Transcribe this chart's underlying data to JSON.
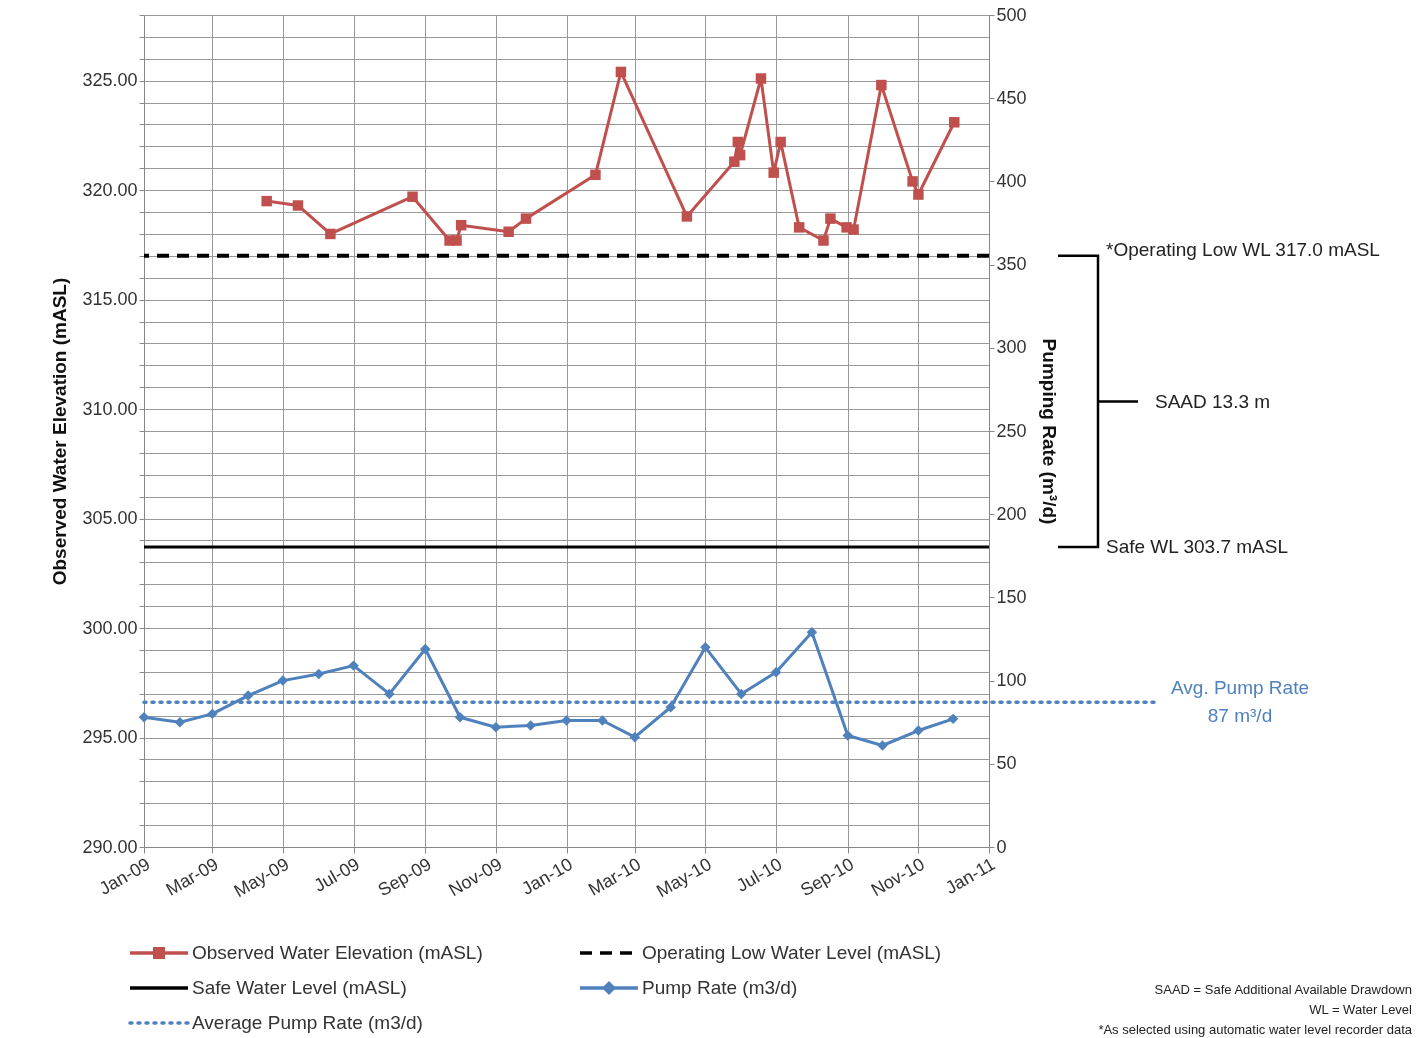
{
  "chart_data": {
    "type": "line",
    "ylabel": "Observed Water Elevation (mASL)",
    "y2label": "Pumping Rate (m³/d)",
    "x": [
      "2009-04-17",
      "2009-05-14",
      "2009-06-11",
      "2009-08-21",
      "2009-09-22",
      "2009-09-28",
      "2009-10-02",
      "2009-11-12",
      "2009-11-27",
      "2010-01-26",
      "2010-02-17",
      "2010-04-15",
      "2010-05-26",
      "2010-05-29",
      "2010-05-31",
      "2010-06-18",
      "2010-06-29",
      "2010-07-05",
      "2010-07-21",
      "2010-08-11",
      "2010-08-17",
      "2010-08-31",
      "2010-09-06",
      "2010-09-30",
      "2010-10-27",
      "2010-11-01",
      "2010-12-02"
    ],
    "series": [
      {
        "name": "Observed Water Elevation (mASL)",
        "color": "#c0504d",
        "marker": "square",
        "values": [
          319.5,
          319.3,
          318.0,
          319.7,
          317.7,
          317.7,
          318.4,
          318.1,
          318.7,
          320.7,
          325.4,
          318.8,
          321.3,
          322.2,
          321.6,
          325.1,
          320.8,
          322.2,
          318.3,
          317.7,
          318.7,
          318.3,
          318.2,
          324.8,
          320.4,
          319.8,
          323.1
        ]
      },
      {
        "name": "Pump Rate (m3/d)",
        "color": "#4f81bd",
        "marker": "diamond",
        "axis": "y2",
        "x": [
          "2009-01-01",
          "2009-02-01",
          "2009-03-01",
          "2009-04-01",
          "2009-05-01",
          "2009-06-01",
          "2009-07-01",
          "2009-08-01",
          "2009-09-01",
          "2009-10-01",
          "2009-11-01",
          "2009-12-01",
          "2010-01-01",
          "2010-02-01",
          "2010-03-01",
          "2010-04-01",
          "2010-05-01",
          "2010-06-01",
          "2010-07-01",
          "2010-08-01",
          "2010-09-01",
          "2010-10-01",
          "2010-11-01",
          "2010-12-01"
        ],
        "values": [
          78,
          75,
          80,
          91,
          100,
          104,
          109,
          92,
          119,
          78,
          72,
          73,
          76,
          76,
          66,
          84,
          120,
          92,
          105,
          129,
          67,
          61,
          70,
          77
        ]
      }
    ],
    "ref_lines": [
      {
        "axis": "y",
        "value": 317.0,
        "label": "Operating Low Water Level (mASL)",
        "color": "#000000",
        "line_style": "dashed"
      },
      {
        "axis": "y",
        "value": 303.7,
        "label": "Safe Water Level (mASL)",
        "color": "#000000",
        "line_style": "solid"
      },
      {
        "axis": "y2",
        "value": 87,
        "label": "Average Pump Rate (m3/d)",
        "color": "#4f81bd",
        "line_style": "dotted"
      }
    ],
    "annotations": [
      "*Operating Low WL  317.0 mASL",
      "SAAD 13.3 m",
      "Safe WL 303.7 mASL",
      "Avg. Pump Rate",
      "87 m³/d",
      "SAAD = Safe Additional Available Drawdown",
      "WL = Water Level",
      "*As selected using automatic water level recorder data"
    ],
    "xlim": [
      "2009-01-01",
      "2011-01-01"
    ],
    "xticks": [
      {
        "value": "2009-01",
        "label": "Jan-09"
      },
      {
        "value": "2009-03",
        "label": "Mar-09"
      },
      {
        "value": "2009-05",
        "label": "May-09"
      },
      {
        "value": "2009-07",
        "label": "Jul-09"
      },
      {
        "value": "2009-09",
        "label": "Sep-09"
      },
      {
        "value": "2009-11",
        "label": "Nov-09"
      },
      {
        "value": "2010-01",
        "label": "Jan-10"
      },
      {
        "value": "2010-03",
        "label": "Mar-10"
      },
      {
        "value": "2010-05",
        "label": "May-10"
      },
      {
        "value": "2010-07",
        "label": "Jul-10"
      },
      {
        "value": "2010-09",
        "label": "Sep-10"
      },
      {
        "value": "2010-11",
        "label": "Nov-10"
      },
      {
        "value": "2011-01",
        "label": "Jan-11"
      }
    ],
    "ylim": [
      290,
      328
    ],
    "yticks": [
      {
        "value": 290,
        "label": "290.00"
      },
      {
        "value": 291,
        "label": null
      },
      {
        "value": 292,
        "label": null
      },
      {
        "value": 293,
        "label": null
      },
      {
        "value": 294,
        "label": null
      },
      {
        "value": 295,
        "label": "295.00"
      },
      {
        "value": 296,
        "label": null
      },
      {
        "value": 297,
        "label": null
      },
      {
        "value": 298,
        "label": null
      },
      {
        "value": 299,
        "label": null
      },
      {
        "value": 300,
        "label": "300.00"
      },
      {
        "value": 301,
        "label": null
      },
      {
        "value": 302,
        "label": null
      },
      {
        "value": 303,
        "label": null
      },
      {
        "value": 304,
        "label": null
      },
      {
        "value": 305,
        "label": "305.00"
      },
      {
        "value": 306,
        "label": null
      },
      {
        "value": 307,
        "label": null
      },
      {
        "value": 308,
        "label": null
      },
      {
        "value": 309,
        "label": null
      },
      {
        "value": 310,
        "label": "310.00"
      },
      {
        "value": 311,
        "label": null
      },
      {
        "value": 312,
        "label": null
      },
      {
        "value": 313,
        "label": null
      },
      {
        "value": 314,
        "label": null
      },
      {
        "value": 315,
        "label": "315.00"
      },
      {
        "value": 316,
        "label": null
      },
      {
        "value": 317,
        "label": null
      },
      {
        "value": 318,
        "label": null
      },
      {
        "value": 319,
        "label": null
      },
      {
        "value": 320,
        "label": "320.00"
      },
      {
        "value": 321,
        "label": null
      },
      {
        "value": 322,
        "label": null
      },
      {
        "value": 323,
        "label": null
      },
      {
        "value": 324,
        "label": null
      },
      {
        "value": 325,
        "label": "325.00"
      },
      {
        "value": 326,
        "label": null
      },
      {
        "value": 327,
        "label": null
      },
      {
        "value": 328,
        "label": null
      }
    ],
    "y2lim": [
      0,
      500
    ],
    "y2ticks": [
      0,
      50,
      100,
      150,
      200,
      250,
      300,
      350,
      400,
      450,
      500
    ],
    "grid": true,
    "legend": "bottom",
    "line_style": "solid"
  }
}
